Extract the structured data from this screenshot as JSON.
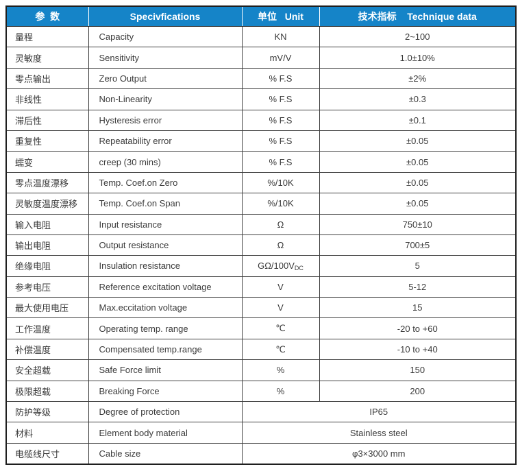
{
  "table": {
    "header": {
      "param": "参  数",
      "spec": "Specivfications",
      "unit": "单位   Unit",
      "value": "技术指标    Technique data"
    },
    "rows": [
      {
        "cn": "量程",
        "en": "Capacity",
        "unit": "KN",
        "value": "2~100"
      },
      {
        "cn": "灵敏度",
        "en": "Sensitivity",
        "unit": "mV/V",
        "value": "1.0±10%"
      },
      {
        "cn": "零点输出",
        "en": "Zero Output",
        "unit": "% F.S",
        "value": "±2%"
      },
      {
        "cn": "非线性",
        "en": "Non-Linearity",
        "unit": "% F.S",
        "value": "±0.3"
      },
      {
        "cn": "滞后性",
        "en": "Hysteresis error",
        "unit": "% F.S",
        "value": "±0.1"
      },
      {
        "cn": "重复性",
        "en": "Repeatability error",
        "unit": "% F.S",
        "value": "±0.05"
      },
      {
        "cn": "蠕变",
        "en": "creep (30 mins)",
        "unit": "% F.S",
        "value": "±0.05"
      },
      {
        "cn": "零点温度漂移",
        "en": "Temp. Coef.on Zero",
        "unit": "%/10K",
        "value": "±0.05"
      },
      {
        "cn": "灵敏度温度漂移",
        "en": "Temp. Coef.on Span",
        "unit": "%/10K",
        "value": "±0.05"
      },
      {
        "cn": "输入电阻",
        "en": "Input resistance",
        "unit": "Ω",
        "value": "750±10"
      },
      {
        "cn": "输出电阻",
        "en": "Output resistance",
        "unit": "Ω",
        "value": "700±5"
      },
      {
        "cn": "绝缘电阻",
        "en": "Insulation resistance",
        "unit": "GΩ/100V",
        "unit_sub": "DC",
        "value": "5"
      },
      {
        "cn": "参考电压",
        "en": "Reference excitation voltage",
        "unit": "V",
        "value": "5-12"
      },
      {
        "cn": "最大使用电压",
        "en": "Max.eccitation voltage",
        "unit": "V",
        "value": "15"
      },
      {
        "cn": "工作温度",
        "en": "Operating temp. range",
        "unit": "℃",
        "value": "-20 to +60"
      },
      {
        "cn": "补偿温度",
        "en": "Compensated temp.range",
        "unit": "℃",
        "value": "-10 to +40"
      },
      {
        "cn": "安全超载",
        "en": "Safe Force limit",
        "unit": "%",
        "value": "150"
      },
      {
        "cn": "极限超载",
        "en": "Breaking Force",
        "unit": "%",
        "value": "200"
      },
      {
        "cn": "防护等级",
        "en": "Degree of protection",
        "merged": true,
        "value": "IP65"
      },
      {
        "cn": "材料",
        "en": "Element body material",
        "merged": true,
        "value": "Stainless steel"
      },
      {
        "cn": "电缆线尺寸",
        "en": "Cable size",
        "merged": true,
        "value": "φ3×3000 mm"
      }
    ]
  },
  "colors": {
    "header_bg": "#1584C8",
    "header_text": "#FFFFFF",
    "border_outer": "#1F1F1F",
    "border_inner": "#3F3F3F",
    "body_text": "#3A3A3A"
  }
}
